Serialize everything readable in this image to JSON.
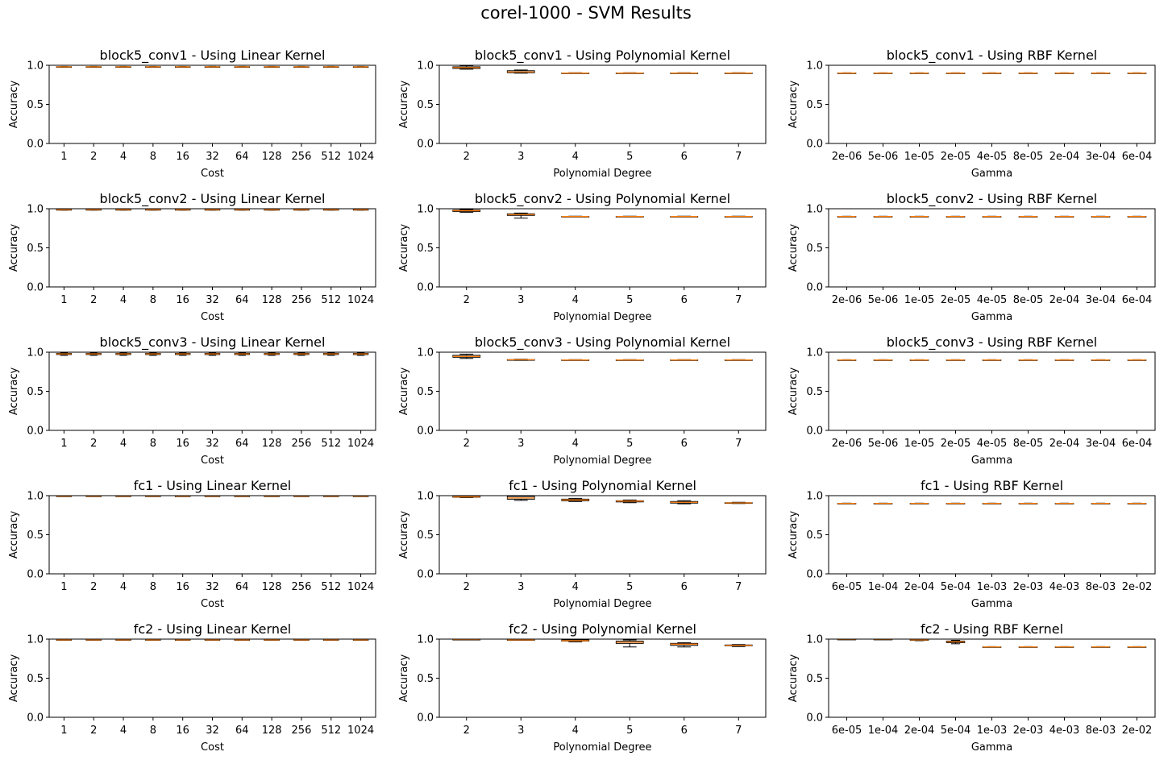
{
  "figure": {
    "title": "corel-1000 - SVM Results"
  },
  "style": {
    "box_color": "#000000",
    "median_color": "#ff7f0e",
    "axis_color": "#000000"
  },
  "x_sets": {
    "cost": [
      "1",
      "2",
      "4",
      "8",
      "16",
      "32",
      "64",
      "128",
      "256",
      "512",
      "1024"
    ],
    "degree": [
      "2",
      "3",
      "4",
      "5",
      "6",
      "7"
    ],
    "gamma_conv": [
      "2e-06",
      "5e-06",
      "1e-05",
      "2e-05",
      "4e-05",
      "8e-05",
      "2e-04",
      "3e-04",
      "6e-04"
    ],
    "gamma_fc": [
      "6e-05",
      "1e-04",
      "2e-04",
      "5e-04",
      "1e-03",
      "2e-03",
      "4e-03",
      "8e-03",
      "2e-02"
    ]
  },
  "chart_data": [
    {
      "type": "box",
      "title": "block5_conv1 - Using Linear Kernel",
      "xlabel": "Cost",
      "ylabel": "Accuracy",
      "ylim": [
        0,
        1
      ],
      "yticks": [
        "0.0",
        "0.5",
        "1.0"
      ],
      "categories_key": "cost",
      "boxes": [
        [
          0.975,
          0.978,
          0.98,
          0.982,
          0.985
        ],
        [
          0.975,
          0.978,
          0.98,
          0.982,
          0.985
        ],
        [
          0.975,
          0.978,
          0.98,
          0.982,
          0.985
        ],
        [
          0.975,
          0.978,
          0.98,
          0.982,
          0.985
        ],
        [
          0.975,
          0.978,
          0.98,
          0.982,
          0.985
        ],
        [
          0.975,
          0.978,
          0.98,
          0.982,
          0.985
        ],
        [
          0.975,
          0.978,
          0.98,
          0.982,
          0.985
        ],
        [
          0.975,
          0.978,
          0.98,
          0.982,
          0.985
        ],
        [
          0.975,
          0.978,
          0.98,
          0.982,
          0.985
        ],
        [
          0.975,
          0.978,
          0.98,
          0.982,
          0.985
        ],
        [
          0.975,
          0.978,
          0.98,
          0.982,
          0.985
        ]
      ]
    },
    {
      "type": "box",
      "title": "block5_conv1 - Using Polynomial Kernel",
      "xlabel": "Polynomial Degree",
      "ylabel": "Accuracy",
      "ylim": [
        0,
        1
      ],
      "yticks": [
        "0.0",
        "0.5",
        "1.0"
      ],
      "categories_key": "degree",
      "boxes": [
        [
          0.95,
          0.96,
          0.97,
          0.98,
          0.995
        ],
        [
          0.9,
          0.905,
          0.915,
          0.93,
          0.94
        ],
        [
          0.898,
          0.9,
          0.9,
          0.902,
          0.904
        ],
        [
          0.898,
          0.9,
          0.9,
          0.902,
          0.904
        ],
        [
          0.898,
          0.9,
          0.9,
          0.902,
          0.904
        ],
        [
          0.898,
          0.9,
          0.9,
          0.902,
          0.904
        ]
      ]
    },
    {
      "type": "box",
      "title": "block5_conv1 - Using RBF Kernel",
      "xlabel": "Gamma",
      "ylabel": "Accuracy",
      "ylim": [
        0,
        1
      ],
      "yticks": [
        "0.0",
        "0.5",
        "1.0"
      ],
      "categories_key": "gamma_conv",
      "boxes": [
        [
          0.898,
          0.9,
          0.9,
          0.902,
          0.904
        ],
        [
          0.898,
          0.9,
          0.9,
          0.902,
          0.904
        ],
        [
          0.898,
          0.9,
          0.9,
          0.902,
          0.904
        ],
        [
          0.898,
          0.9,
          0.9,
          0.902,
          0.904
        ],
        [
          0.898,
          0.9,
          0.9,
          0.902,
          0.904
        ],
        [
          0.898,
          0.9,
          0.9,
          0.902,
          0.904
        ],
        [
          0.898,
          0.9,
          0.9,
          0.902,
          0.904
        ],
        [
          0.898,
          0.9,
          0.9,
          0.902,
          0.904
        ],
        [
          0.898,
          0.9,
          0.9,
          0.902,
          0.904
        ]
      ]
    },
    {
      "type": "box",
      "title": "block5_conv2 - Using Linear Kernel",
      "xlabel": "Cost",
      "ylabel": "Accuracy",
      "ylim": [
        0,
        1
      ],
      "yticks": [
        "0.0",
        "0.5",
        "1.0"
      ],
      "categories_key": "cost",
      "boxes": [
        [
          0.982,
          0.985,
          0.987,
          0.99,
          0.993
        ],
        [
          0.982,
          0.985,
          0.987,
          0.99,
          0.993
        ],
        [
          0.982,
          0.985,
          0.987,
          0.99,
          0.993
        ],
        [
          0.982,
          0.985,
          0.987,
          0.99,
          0.993
        ],
        [
          0.982,
          0.985,
          0.987,
          0.99,
          0.993
        ],
        [
          0.982,
          0.985,
          0.987,
          0.99,
          0.993
        ],
        [
          0.982,
          0.985,
          0.987,
          0.99,
          0.993
        ],
        [
          0.982,
          0.985,
          0.987,
          0.99,
          0.993
        ],
        [
          0.982,
          0.985,
          0.987,
          0.99,
          0.993
        ],
        [
          0.982,
          0.985,
          0.987,
          0.99,
          0.993
        ],
        [
          0.982,
          0.985,
          0.987,
          0.99,
          0.993
        ]
      ]
    },
    {
      "type": "box",
      "title": "block5_conv2 - Using Polynomial Kernel",
      "xlabel": "Polynomial Degree",
      "ylabel": "Accuracy",
      "ylim": [
        0,
        1
      ],
      "yticks": [
        "0.0",
        "0.5",
        "1.0"
      ],
      "categories_key": "degree",
      "boxes": [
        [
          0.955,
          0.965,
          0.975,
          0.983,
          0.99
        ],
        [
          0.88,
          0.915,
          0.925,
          0.935,
          0.945
        ],
        [
          0.898,
          0.9,
          0.9,
          0.902,
          0.904
        ],
        [
          0.898,
          0.9,
          0.9,
          0.902,
          0.904
        ],
        [
          0.898,
          0.9,
          0.9,
          0.902,
          0.904
        ],
        [
          0.898,
          0.9,
          0.9,
          0.902,
          0.904
        ]
      ]
    },
    {
      "type": "box",
      "title": "block5_conv2 - Using RBF Kernel",
      "xlabel": "Gamma",
      "ylabel": "Accuracy",
      "ylim": [
        0,
        1
      ],
      "yticks": [
        "0.0",
        "0.5",
        "1.0"
      ],
      "categories_key": "gamma_conv",
      "boxes": [
        [
          0.898,
          0.9,
          0.9,
          0.902,
          0.904
        ],
        [
          0.898,
          0.9,
          0.9,
          0.902,
          0.904
        ],
        [
          0.898,
          0.9,
          0.9,
          0.902,
          0.904
        ],
        [
          0.898,
          0.9,
          0.9,
          0.902,
          0.904
        ],
        [
          0.898,
          0.9,
          0.9,
          0.902,
          0.904
        ],
        [
          0.898,
          0.9,
          0.9,
          0.902,
          0.904
        ],
        [
          0.898,
          0.9,
          0.9,
          0.902,
          0.904
        ],
        [
          0.898,
          0.9,
          0.9,
          0.902,
          0.904
        ],
        [
          0.898,
          0.9,
          0.9,
          0.902,
          0.904
        ]
      ]
    },
    {
      "type": "box",
      "title": "block5_conv3 - Using Linear Kernel",
      "xlabel": "Cost",
      "ylabel": "Accuracy",
      "ylim": [
        0,
        1
      ],
      "yticks": [
        "0.0",
        "0.5",
        "1.0"
      ],
      "categories_key": "cost",
      "boxes": [
        [
          0.96,
          0.97,
          0.978,
          0.985,
          0.99
        ],
        [
          0.96,
          0.97,
          0.978,
          0.985,
          0.99
        ],
        [
          0.96,
          0.97,
          0.978,
          0.985,
          0.99
        ],
        [
          0.96,
          0.97,
          0.978,
          0.985,
          0.99
        ],
        [
          0.96,
          0.97,
          0.978,
          0.985,
          0.99
        ],
        [
          0.96,
          0.97,
          0.978,
          0.985,
          0.99
        ],
        [
          0.96,
          0.97,
          0.978,
          0.985,
          0.99
        ],
        [
          0.96,
          0.97,
          0.978,
          0.985,
          0.99
        ],
        [
          0.96,
          0.97,
          0.978,
          0.985,
          0.99
        ],
        [
          0.96,
          0.97,
          0.978,
          0.985,
          0.99
        ],
        [
          0.96,
          0.97,
          0.978,
          0.985,
          0.99
        ]
      ]
    },
    {
      "type": "box",
      "title": "block5_conv3 - Using Polynomial Kernel",
      "xlabel": "Polynomial Degree",
      "ylabel": "Accuracy",
      "ylim": [
        0,
        1
      ],
      "yticks": [
        "0.0",
        "0.5",
        "1.0"
      ],
      "categories_key": "degree",
      "boxes": [
        [
          0.92,
          0.935,
          0.945,
          0.96,
          0.975
        ],
        [
          0.895,
          0.9,
          0.903,
          0.905,
          0.91
        ],
        [
          0.898,
          0.9,
          0.9,
          0.902,
          0.904
        ],
        [
          0.898,
          0.9,
          0.9,
          0.902,
          0.904
        ],
        [
          0.898,
          0.9,
          0.9,
          0.902,
          0.904
        ],
        [
          0.898,
          0.9,
          0.9,
          0.902,
          0.904
        ]
      ]
    },
    {
      "type": "box",
      "title": "block5_conv3 - Using RBF Kernel",
      "xlabel": "Gamma",
      "ylabel": "Accuracy",
      "ylim": [
        0,
        1
      ],
      "yticks": [
        "0.0",
        "0.5",
        "1.0"
      ],
      "categories_key": "gamma_conv",
      "boxes": [
        [
          0.898,
          0.9,
          0.9,
          0.902,
          0.904
        ],
        [
          0.898,
          0.9,
          0.9,
          0.902,
          0.904
        ],
        [
          0.898,
          0.9,
          0.9,
          0.902,
          0.904
        ],
        [
          0.898,
          0.9,
          0.9,
          0.902,
          0.904
        ],
        [
          0.898,
          0.9,
          0.9,
          0.902,
          0.904
        ],
        [
          0.898,
          0.9,
          0.9,
          0.902,
          0.904
        ],
        [
          0.898,
          0.9,
          0.9,
          0.902,
          0.904
        ],
        [
          0.898,
          0.9,
          0.9,
          0.902,
          0.904
        ],
        [
          0.898,
          0.9,
          0.9,
          0.902,
          0.904
        ]
      ]
    },
    {
      "type": "box",
      "title": "fc1 - Using Linear Kernel",
      "xlabel": "Cost",
      "ylabel": "Accuracy",
      "ylim": [
        0,
        1
      ],
      "yticks": [
        "0.0",
        "0.5",
        "1.0"
      ],
      "categories_key": "cost",
      "boxes": [
        [
          0.99,
          0.992,
          0.994,
          0.996,
          0.998
        ],
        [
          0.99,
          0.992,
          0.994,
          0.996,
          0.998
        ],
        [
          0.99,
          0.992,
          0.994,
          0.996,
          0.998
        ],
        [
          0.99,
          0.992,
          0.994,
          0.996,
          0.998
        ],
        [
          0.99,
          0.992,
          0.994,
          0.996,
          0.998
        ],
        [
          0.99,
          0.992,
          0.994,
          0.996,
          0.998
        ],
        [
          0.99,
          0.992,
          0.994,
          0.996,
          0.998
        ],
        [
          0.99,
          0.992,
          0.994,
          0.996,
          0.998
        ],
        [
          0.99,
          0.992,
          0.994,
          0.996,
          0.998
        ],
        [
          0.99,
          0.992,
          0.994,
          0.996,
          0.998
        ],
        [
          0.99,
          0.992,
          0.994,
          0.996,
          0.998
        ]
      ]
    },
    {
      "type": "box",
      "title": "fc1 - Using Polynomial Kernel",
      "xlabel": "Polynomial Degree",
      "ylabel": "Accuracy",
      "ylim": [
        0,
        1
      ],
      "yticks": [
        "0.0",
        "0.5",
        "1.0"
      ],
      "categories_key": "degree",
      "boxes": [
        [
          0.975,
          0.98,
          0.985,
          0.99,
          0.995
        ],
        [
          0.94,
          0.955,
          0.97,
          0.99,
          1.0
        ],
        [
          0.925,
          0.935,
          0.945,
          0.955,
          0.965
        ],
        [
          0.91,
          0.92,
          0.93,
          0.935,
          0.945
        ],
        [
          0.895,
          0.905,
          0.915,
          0.925,
          0.935
        ],
        [
          0.9,
          0.903,
          0.907,
          0.91,
          0.915
        ]
      ]
    },
    {
      "type": "box",
      "title": "fc1 - Using RBF Kernel",
      "xlabel": "Gamma",
      "ylabel": "Accuracy",
      "ylim": [
        0,
        1
      ],
      "yticks": [
        "0.0",
        "0.5",
        "1.0"
      ],
      "categories_key": "gamma_fc",
      "boxes": [
        [
          0.898,
          0.9,
          0.9,
          0.902,
          0.904
        ],
        [
          0.898,
          0.9,
          0.9,
          0.902,
          0.904
        ],
        [
          0.898,
          0.9,
          0.9,
          0.902,
          0.904
        ],
        [
          0.898,
          0.9,
          0.9,
          0.902,
          0.904
        ],
        [
          0.898,
          0.9,
          0.9,
          0.902,
          0.904
        ],
        [
          0.898,
          0.9,
          0.9,
          0.902,
          0.904
        ],
        [
          0.898,
          0.9,
          0.9,
          0.902,
          0.904
        ],
        [
          0.898,
          0.9,
          0.9,
          0.902,
          0.904
        ],
        [
          0.898,
          0.9,
          0.9,
          0.902,
          0.904
        ]
      ]
    },
    {
      "type": "box",
      "title": "fc2 - Using Linear Kernel",
      "xlabel": "Cost",
      "ylabel": "Accuracy",
      "ylim": [
        0,
        1
      ],
      "yticks": [
        "0.0",
        "0.5",
        "1.0"
      ],
      "categories_key": "cost",
      "boxes": [
        [
          0.985,
          0.988,
          0.99,
          0.993,
          0.996
        ],
        [
          0.985,
          0.988,
          0.99,
          0.993,
          0.996
        ],
        [
          0.985,
          0.988,
          0.99,
          0.993,
          0.996
        ],
        [
          0.985,
          0.988,
          0.99,
          0.993,
          0.996
        ],
        [
          0.985,
          0.988,
          0.99,
          0.993,
          0.996
        ],
        [
          0.985,
          0.988,
          0.99,
          0.993,
          0.996
        ],
        [
          0.985,
          0.988,
          0.99,
          0.993,
          0.996
        ],
        [
          0.985,
          0.988,
          0.99,
          0.993,
          0.996
        ],
        [
          0.985,
          0.988,
          0.99,
          0.993,
          0.996
        ],
        [
          0.985,
          0.988,
          0.99,
          0.993,
          0.996
        ],
        [
          0.985,
          0.988,
          0.99,
          0.993,
          0.996
        ]
      ]
    },
    {
      "type": "box",
      "title": "fc2 - Using Polynomial Kernel",
      "xlabel": "Polynomial Degree",
      "ylabel": "Accuracy",
      "ylim": [
        0,
        1
      ],
      "yticks": [
        "0.0",
        "0.5",
        "1.0"
      ],
      "categories_key": "degree",
      "boxes": [
        [
          0.99,
          0.992,
          0.995,
          0.997,
          1.0
        ],
        [
          0.985,
          0.988,
          0.99,
          0.993,
          0.996
        ],
        [
          0.965,
          0.975,
          0.98,
          0.99,
          0.995
        ],
        [
          0.9,
          0.945,
          0.96,
          0.975,
          0.99
        ],
        [
          0.9,
          0.92,
          0.935,
          0.945,
          0.955
        ],
        [
          0.905,
          0.915,
          0.92,
          0.925,
          0.93
        ]
      ]
    },
    {
      "type": "box",
      "title": "fc2 - Using RBF Kernel",
      "xlabel": "Gamma",
      "ylabel": "Accuracy",
      "ylim": [
        0,
        1
      ],
      "yticks": [
        "0.0",
        "0.5",
        "1.0"
      ],
      "categories_key": "gamma_fc",
      "boxes": [
        [
          0.995,
          0.997,
          0.998,
          0.999,
          1.0
        ],
        [
          0.995,
          0.997,
          0.998,
          0.999,
          1.0
        ],
        [
          0.98,
          0.985,
          0.99,
          0.992,
          0.995
        ],
        [
          0.94,
          0.955,
          0.965,
          0.975,
          0.985
        ],
        [
          0.898,
          0.9,
          0.9,
          0.902,
          0.904
        ],
        [
          0.898,
          0.9,
          0.9,
          0.902,
          0.904
        ],
        [
          0.898,
          0.9,
          0.9,
          0.902,
          0.904
        ],
        [
          0.898,
          0.9,
          0.9,
          0.902,
          0.904
        ],
        [
          0.898,
          0.9,
          0.9,
          0.902,
          0.904
        ]
      ]
    }
  ]
}
